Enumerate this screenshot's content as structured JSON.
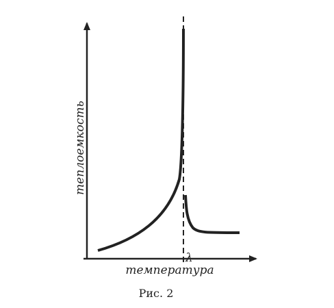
{
  "figure": {
    "y_label": "теплоемкость",
    "x_label": "температура",
    "point_label": "λ",
    "caption": "Рис. 2"
  }
}
